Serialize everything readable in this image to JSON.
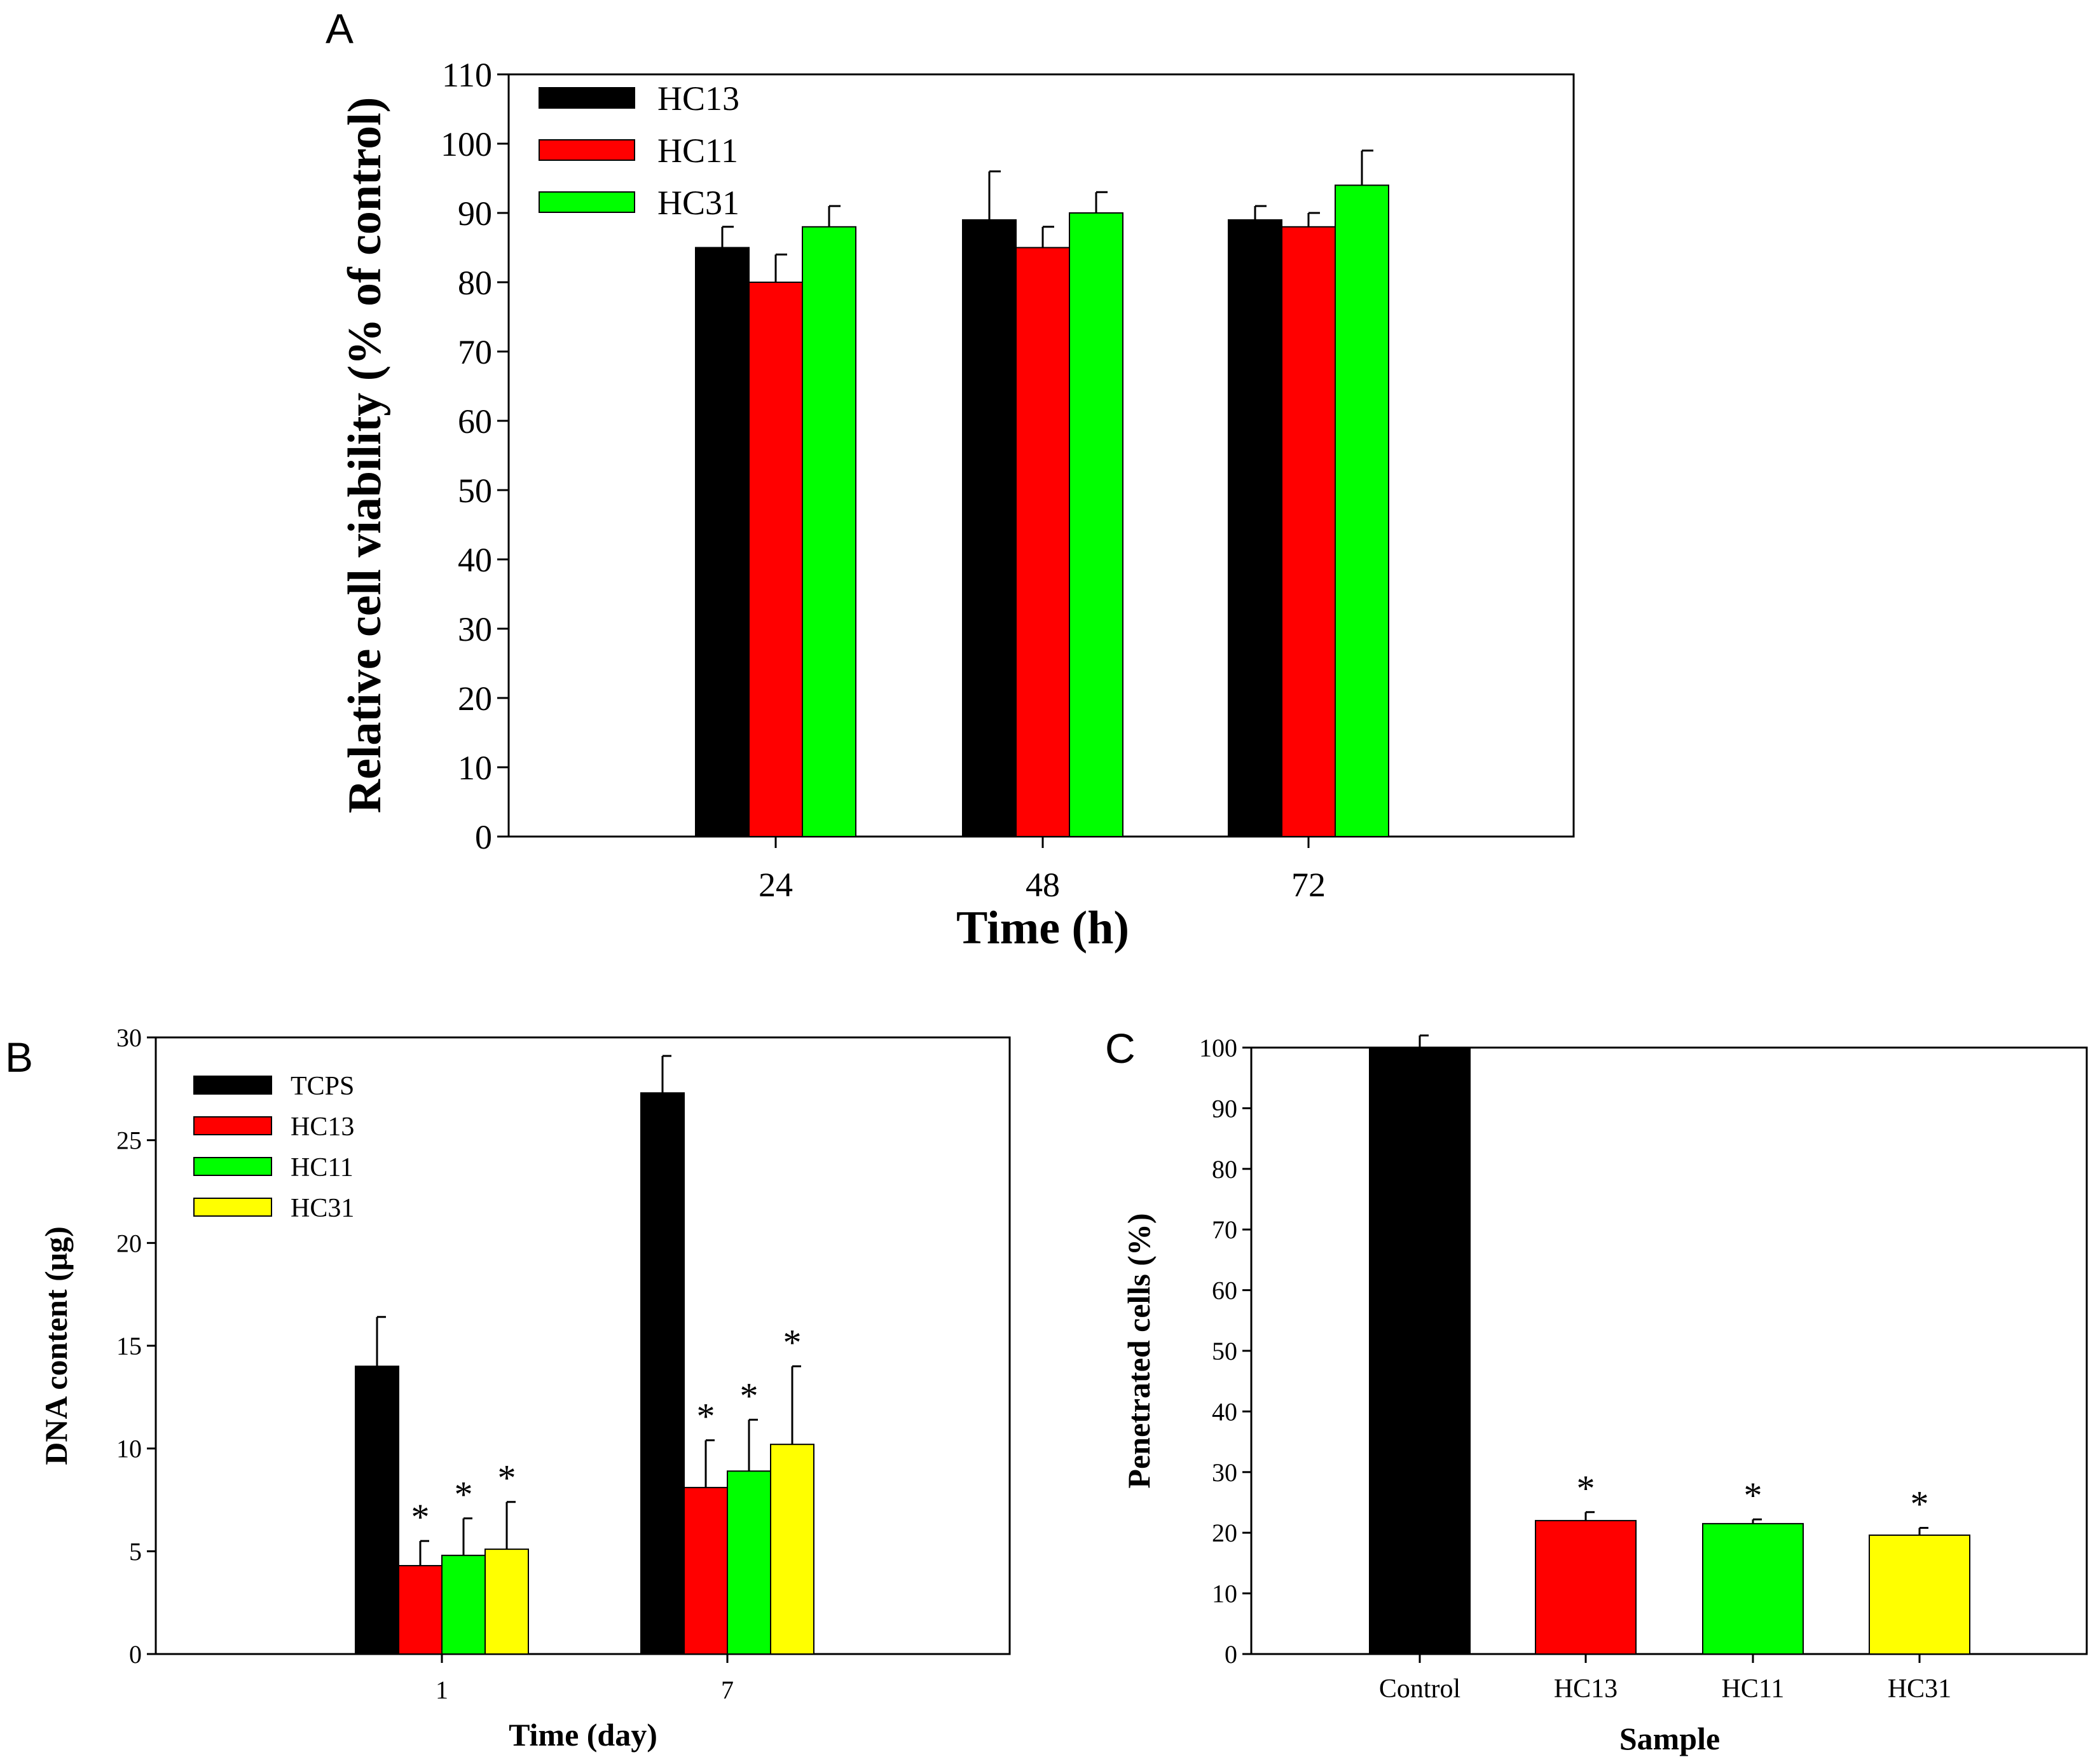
{
  "chart_data": [
    {
      "panel": "A",
      "type": "bar",
      "categories": [
        "24",
        "48",
        "72"
      ],
      "series": [
        {
          "name": "HC13",
          "color": "#000000",
          "values": [
            85,
            89,
            89
          ],
          "errors": [
            3,
            7,
            2
          ]
        },
        {
          "name": "HC11",
          "color": "#ff0000",
          "values": [
            80,
            85,
            88
          ],
          "errors": [
            4,
            3,
            2
          ]
        },
        {
          "name": "HC31",
          "color": "#00ff00",
          "values": [
            88,
            90,
            94
          ],
          "errors": [
            3,
            3,
            5
          ]
        }
      ],
      "xlabel": "Time (h)",
      "ylabel": "Relative cell viability  (% of control)",
      "ylim": [
        0,
        110
      ],
      "yticks": [
        0,
        10,
        20,
        30,
        40,
        50,
        60,
        70,
        80,
        90,
        100,
        110
      ],
      "legend_position": "top-left",
      "grid": false
    },
    {
      "panel": "B",
      "type": "bar",
      "categories": [
        "1",
        "7"
      ],
      "series": [
        {
          "name": "TCPS",
          "color": "#000000",
          "values": [
            14.0,
            27.3
          ],
          "errors": [
            2.4,
            1.8
          ],
          "stars": [
            false,
            false
          ]
        },
        {
          "name": "HC13",
          "color": "#ff0000",
          "values": [
            4.3,
            8.1
          ],
          "errors": [
            1.2,
            2.3
          ],
          "stars": [
            true,
            true
          ]
        },
        {
          "name": "HC11",
          "color": "#00ff00",
          "values": [
            4.8,
            8.9
          ],
          "errors": [
            1.8,
            2.5
          ],
          "stars": [
            true,
            true
          ]
        },
        {
          "name": "HC31",
          "color": "#ffff00",
          "values": [
            5.1,
            10.2
          ],
          "errors": [
            2.3,
            3.8
          ],
          "stars": [
            true,
            true
          ]
        }
      ],
      "xlabel": "Time (day)",
      "ylabel": "DNA content (μg)",
      "ylim": [
        0,
        30
      ],
      "yticks": [
        0,
        5,
        10,
        15,
        20,
        25,
        30
      ],
      "legend_position": "top-left",
      "grid": false,
      "annotation": "*"
    },
    {
      "panel": "C",
      "type": "bar",
      "categories": [
        "Control",
        "HC13",
        "HC11",
        "HC31"
      ],
      "values": [
        100,
        22,
        21.5,
        19.6
      ],
      "errors": [
        2,
        1.4,
        0.7,
        1.2
      ],
      "colors": [
        "#000000",
        "#ff0000",
        "#00ff00",
        "#ffff00"
      ],
      "stars": [
        false,
        true,
        true,
        true
      ],
      "xlabel": "Sample",
      "ylabel": "Penetrated cells (%)",
      "ylim": [
        0,
        100
      ],
      "yticks": [
        0,
        10,
        20,
        30,
        40,
        50,
        60,
        70,
        80,
        90,
        100
      ],
      "grid": false,
      "annotation": "*"
    }
  ],
  "panel_labels": {
    "A": "A",
    "B": "B",
    "C": "C"
  }
}
